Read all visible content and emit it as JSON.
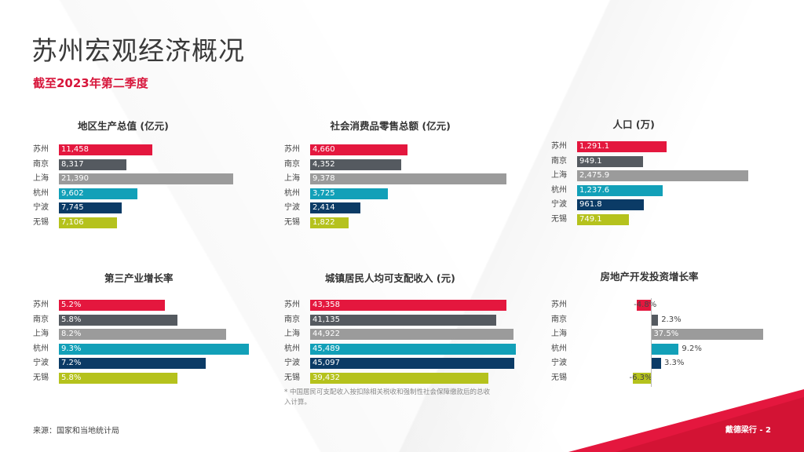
{
  "title": "苏州宏观经济概况",
  "subtitle": "截至2023年第二季度",
  "footnote": "* 中国居民可支配收入按扣除相关税收和强制性社会保障缴款后的总收入计算。",
  "source": "来源：国家和当地统计局",
  "page_label": "戴德梁行 - 2",
  "colors": {
    "苏州": "#e4173e",
    "南京": "#555a60",
    "上海": "#9b9b9b",
    "杭州": "#12a0b8",
    "宁波": "#0b3b66",
    "无锡": "#b5c21d",
    "accent": "#d7163b"
  },
  "chart_data": [
    {
      "type": "bar",
      "title": "地区生产总值 (亿元)",
      "categories": [
        "苏州",
        "南京",
        "上海",
        "杭州",
        "宁波",
        "无锡"
      ],
      "values": [
        11458,
        8317,
        21390,
        9602,
        7745,
        7106
      ],
      "labels": [
        "11,458",
        "8,317",
        "21,390",
        "9,602",
        "7,745",
        "7,106"
      ]
    },
    {
      "type": "bar",
      "title": "社会消费品零售总额 (亿元)",
      "categories": [
        "苏州",
        "南京",
        "上海",
        "杭州",
        "宁波",
        "无锡"
      ],
      "values": [
        4660,
        4352,
        9378,
        3725,
        2414,
        1822
      ],
      "labels": [
        "4,660",
        "4,352",
        "9,378",
        "3,725",
        "2,414",
        "1,822"
      ]
    },
    {
      "type": "bar",
      "title": "人口 (万)",
      "categories": [
        "苏州",
        "南京",
        "上海",
        "杭州",
        "宁波",
        "无锡"
      ],
      "values": [
        1291.1,
        949.1,
        2475.9,
        1237.6,
        961.8,
        749.1
      ],
      "labels": [
        "1,291.1",
        "949.1",
        "2,475.9",
        "1,237.6",
        "961.8",
        "749.1"
      ]
    },
    {
      "type": "bar",
      "title": "第三产业增长率",
      "categories": [
        "苏州",
        "南京",
        "上海",
        "杭州",
        "宁波",
        "无锡"
      ],
      "values": [
        5.2,
        5.8,
        8.2,
        9.3,
        7.2,
        5.8
      ],
      "labels": [
        "5.2%",
        "5.8%",
        "8.2%",
        "9.3%",
        "7.2%",
        "5.8%"
      ]
    },
    {
      "type": "bar",
      "title": "城镇居民人均可支配收入 (元)",
      "categories": [
        "苏州",
        "南京",
        "上海",
        "杭州",
        "宁波",
        "无锡"
      ],
      "values": [
        43358,
        41135,
        44922,
        45489,
        45097,
        39432
      ],
      "labels": [
        "43,358",
        "41,135",
        "44,922",
        "45,489",
        "45,097",
        "39,432"
      ]
    },
    {
      "type": "bar",
      "title": "房地产开发投资增长率",
      "categories": [
        "苏州",
        "南京",
        "上海",
        "杭州",
        "宁波",
        "无锡"
      ],
      "values": [
        -4.8,
        2.3,
        37.5,
        9.2,
        3.3,
        -6.3
      ],
      "labels": [
        "-4.8%",
        "2.3%",
        "37.5%",
        "9.2%",
        "3.3%",
        "-6.3%"
      ]
    }
  ]
}
